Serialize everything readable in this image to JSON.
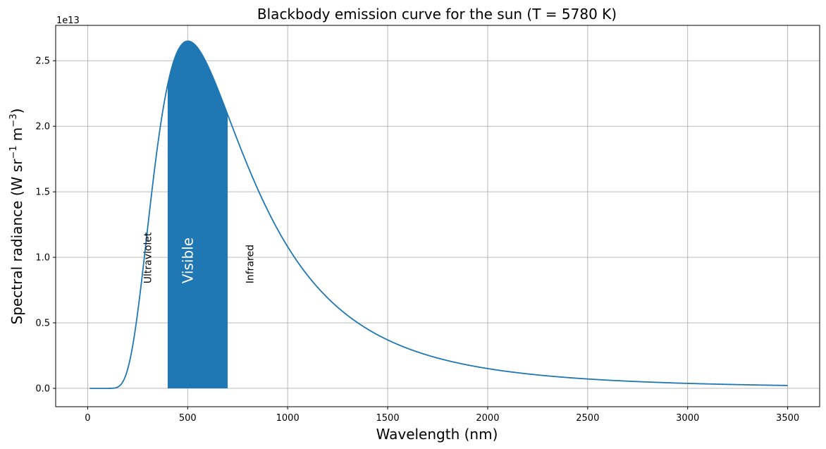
{
  "chart_data": {
    "type": "line",
    "title": "Blackbody emission curve for the sun (T = 5780 K)",
    "xlabel": "Wavelength (nm)",
    "ylabel_main": "Spectral radiance (W sr",
    "ylabel_sup1": "−1",
    "ylabel_mid": " m",
    "ylabel_sup2": "−3",
    "ylabel_end": ")",
    "offset_text": "1e13",
    "xlim": [
      -160,
      3660
    ],
    "ylim": [
      -0.14,
      2.77
    ],
    "y_scale_note": "y values in units of 1e13",
    "x_ticks": [
      0,
      500,
      1000,
      1500,
      2000,
      2500,
      3000,
      3500
    ],
    "x_tick_labels": [
      "0",
      "500",
      "1000",
      "1500",
      "2000",
      "2500",
      "3000",
      "3500"
    ],
    "y_ticks": [
      0,
      0.5,
      1.0,
      1.5,
      2.0,
      2.5
    ],
    "y_tick_labels": [
      "0.0",
      "0.5",
      "1.0",
      "1.5",
      "2.0",
      "2.5"
    ],
    "grid": true,
    "series": [
      {
        "temperature_K": 5780,
        "x_range_nm": [
          10,
          3500
        ],
        "peak": {
          "x": 501,
          "y": 2.65
        },
        "color": "#1f77b4"
      }
    ],
    "shaded_region": {
      "x_start": 400,
      "x_end": 700,
      "color": "#1f77b4"
    },
    "annotations": [
      {
        "text": "Ultraviolet",
        "x": 300,
        "y": 0.8,
        "color": "#000000",
        "size": "small"
      },
      {
        "text": "Visible",
        "x": 500,
        "y": 0.8,
        "color": "#ffffff",
        "size": "large"
      },
      {
        "text": "Infrared",
        "x": 810,
        "y": 0.8,
        "color": "#000000",
        "size": "small"
      }
    ]
  }
}
